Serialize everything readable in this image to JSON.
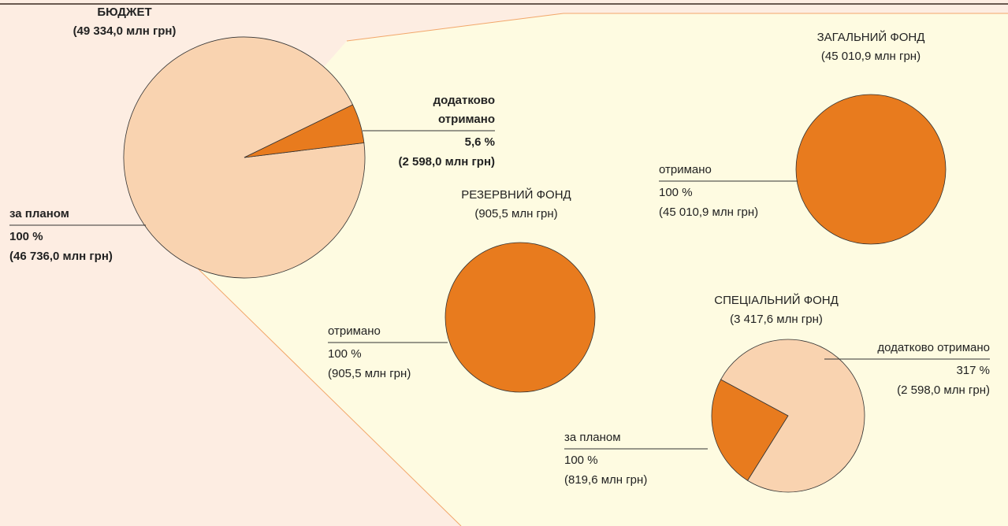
{
  "chart_data": [
    {
      "type": "pie",
      "title": "БЮДЖЕТ",
      "subtitle": "(49 334,0 млн грн)",
      "categories": [
        "за планом",
        "додатково отримано"
      ],
      "values": [
        46736.0,
        2598.0
      ],
      "value_labels": [
        "(46 736,0 млн грн)",
        "(2 598,0 млн грн)"
      ],
      "percents": [
        100,
        5.6
      ],
      "percent_labels": [
        "100 %",
        "5,6 %"
      ],
      "colors": [
        "#f9d3b0",
        "#e87b1e"
      ]
    },
    {
      "type": "pie",
      "title": "РЕЗЕРВНИЙ ФОНД",
      "subtitle": "(905,5 млн грн)",
      "categories": [
        "отримано"
      ],
      "values": [
        905.5
      ],
      "value_labels": [
        "(905,5 млн грн)"
      ],
      "percents": [
        100
      ],
      "percent_labels": [
        "100 %"
      ],
      "colors": [
        "#e87b1e"
      ]
    },
    {
      "type": "pie",
      "title": "ЗАГАЛЬНИЙ ФОНД",
      "subtitle": "(45 010,9 млн грн)",
      "categories": [
        "отримано"
      ],
      "values": [
        45010.9
      ],
      "value_labels": [
        "(45 010,9 млн грн)"
      ],
      "percents": [
        100
      ],
      "percent_labels": [
        "100 %"
      ],
      "colors": [
        "#e87b1e"
      ]
    },
    {
      "type": "pie",
      "title": "СПЕЦІАЛЬНИЙ ФОНД",
      "subtitle": "(3 417,6 млн грн)",
      "categories": [
        "за планом",
        "додатково отримано"
      ],
      "values": [
        819.6,
        2598.0
      ],
      "value_labels": [
        "(819,6 млн грн)",
        "(2 598,0 млн грн)"
      ],
      "percents": [
        100,
        317
      ],
      "percent_labels": [
        "100 %",
        "317 %"
      ],
      "colors": [
        "#e87b1e",
        "#f9d3b0"
      ]
    }
  ]
}
